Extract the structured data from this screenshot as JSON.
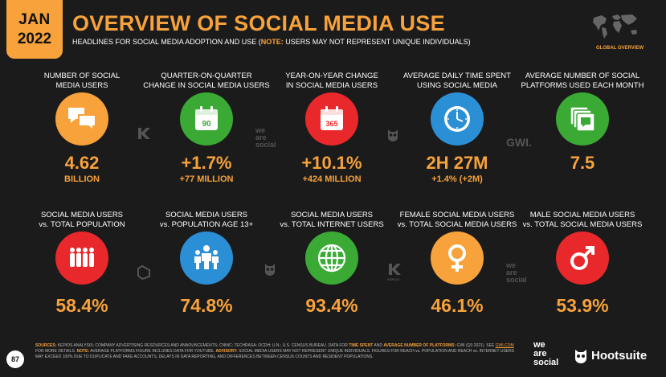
{
  "header": {
    "month": "JAN",
    "year": "2022",
    "title": "OVERVIEW OF SOCIAL MEDIA USE",
    "subtitle_pre": "HEADLINES FOR SOCIAL MEDIA ADOPTION AND USE (",
    "subtitle_note": "NOTE:",
    "subtitle_post": " USERS MAY NOT REPRESENT UNIQUE INDIVIDUALS)",
    "map_label": "GLOBAL OVERVIEW"
  },
  "row1": [
    {
      "label": "NUMBER OF SOCIAL\nMEDIA USERS",
      "value": "4.62",
      "sub": "BILLION",
      "color": "#f7a23b",
      "icon": "chat-bubbles-icon"
    },
    {
      "label": "QUARTER-ON-QUARTER\nCHANGE IN SOCIAL MEDIA USERS",
      "value": "+1.7%",
      "sub": "+77 MILLION",
      "color": "#3aaa35",
      "icon": "calendar-90-icon",
      "icon_text": "90"
    },
    {
      "label": "YEAR-ON-YEAR CHANGE\nIN SOCIAL MEDIA USERS",
      "value": "+10.1%",
      "sub": "+424 MILLION",
      "color": "#e8282b",
      "icon": "calendar-365-icon",
      "icon_text": "365"
    },
    {
      "label": "AVERAGE DAILY TIME SPENT\nUSING SOCIAL MEDIA",
      "value": "2H 27M",
      "sub": "+1.4% (+2M)",
      "color": "#2b8fd6",
      "icon": "clock-icon"
    },
    {
      "label": "AVERAGE NUMBER OF SOCIAL\nPLATFORMS USED EACH MONTH",
      "value": "7.5",
      "sub": "",
      "color": "#3aaa35",
      "icon": "stacked-platforms-icon"
    }
  ],
  "row2": [
    {
      "label": "SOCIAL MEDIA USERS\nvs. TOTAL POPULATION",
      "value": "58.4%",
      "color": "#e8282b",
      "icon": "population-icon"
    },
    {
      "label": "SOCIAL MEDIA USERS\nvs. POPULATION AGE 13+",
      "value": "74.8%",
      "color": "#2b8fd6",
      "icon": "adults-icon"
    },
    {
      "label": "SOCIAL MEDIA USERS\nvs. TOTAL INTERNET USERS",
      "value": "93.4%",
      "color": "#3aaa35",
      "icon": "globe-icon"
    },
    {
      "label": "FEMALE SOCIAL MEDIA USERS\nvs. TOTAL SOCIAL MEDIA USERS",
      "value": "46.1%",
      "color": "#f7a23b",
      "icon": "female-symbol-icon"
    },
    {
      "label": "MALE SOCIAL MEDIA USERS\nvs. TOTAL SOCIAL MEDIA USERS",
      "value": "53.9%",
      "color": "#e8282b",
      "icon": "male-symbol-icon"
    }
  ],
  "watermarks": {
    "kepios": "KEPIOS",
    "we_are_social": "we\nare\nsocial",
    "gwi": "GWI."
  },
  "footer": {
    "p1_key": "SOURCES:",
    "p1_text": " KEPIOS ANALYSIS; COMPANY ADVERTISING RESOURCES AND ANNOUNCEMENTS; CNNIC; TECHRASA; OCDH; U.N.; U.S. CENSUS BUREAU. DATA FOR ",
    "p1_k2": "TIME SPENT",
    "p1_and": " AND ",
    "p1_k3": "AVERAGE NUMBER OF PLATFORMS:",
    "p1_text2": " GWI (Q3 2021). SEE ",
    "p1_link": "GWI.COM",
    "p1_text3": " FOR MORE DETAILS. ",
    "p2_key": "NOTE:",
    "p2_text": " AVERAGE PLATFORMS FIGURE INCLUDES DATA FOR YOUTUBE. ",
    "p3_key": "ADVISORY:",
    "p3_text": " SOCIAL MEDIA USERS MAY NOT REPRESENT UNIQUE INDIVIDUALS. FIGURES FOR REACH vs. POPULATION AND REACH vs. INTERNET USERS MAY EXCEED 100% DUE TO DUPLICATE AND FAKE ACCOUNTS, DELAYS IN DATA REPORTING, AND DIFFERENCES BETWEEN CENSUS COUNTS AND RESIDENT POPULATIONS.",
    "page_number": "87",
    "brand1": "we\nare\nsocial",
    "brand2": "Hootsuite"
  }
}
